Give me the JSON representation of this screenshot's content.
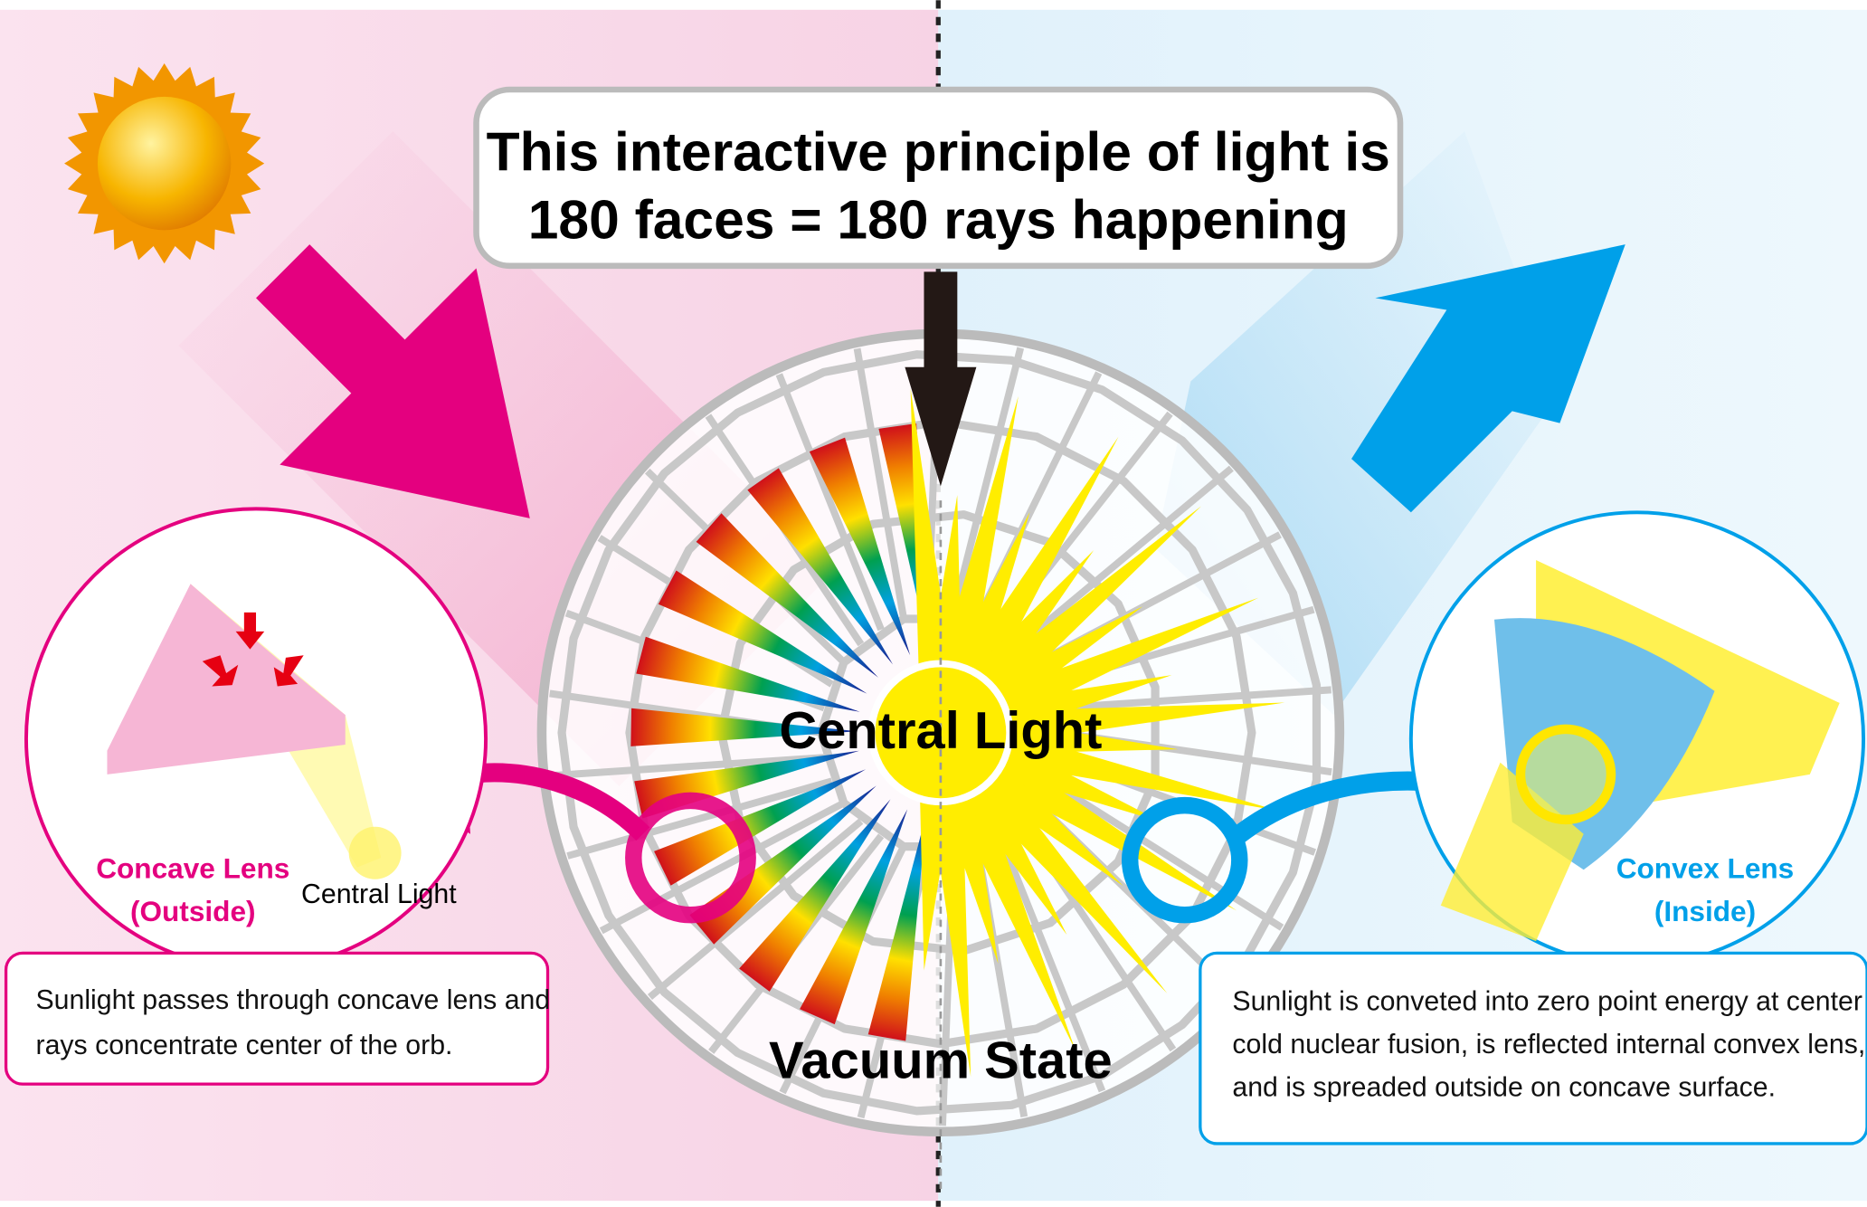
{
  "header": {
    "lines": [
      "This interactive principle of light is",
      "180 faces = 180 rays happening"
    ]
  },
  "center_label": "Central Light",
  "bottom_label": "Vacuum State",
  "concave": {
    "name": "Concave Lens",
    "side": "(Outside)",
    "light": "Central Light",
    "description": [
      "Sunlight passes through concave lens and",
      "rays concentrate center of the orb."
    ]
  },
  "convex": {
    "name": "Convex Lens",
    "side": "(Inside)",
    "description": [
      "Sunlight is conveted into zero point energy at center by",
      "cold nuclear fusion, is reflected internal convex lens,",
      "and is spreaded outside on concave surface."
    ]
  }
}
